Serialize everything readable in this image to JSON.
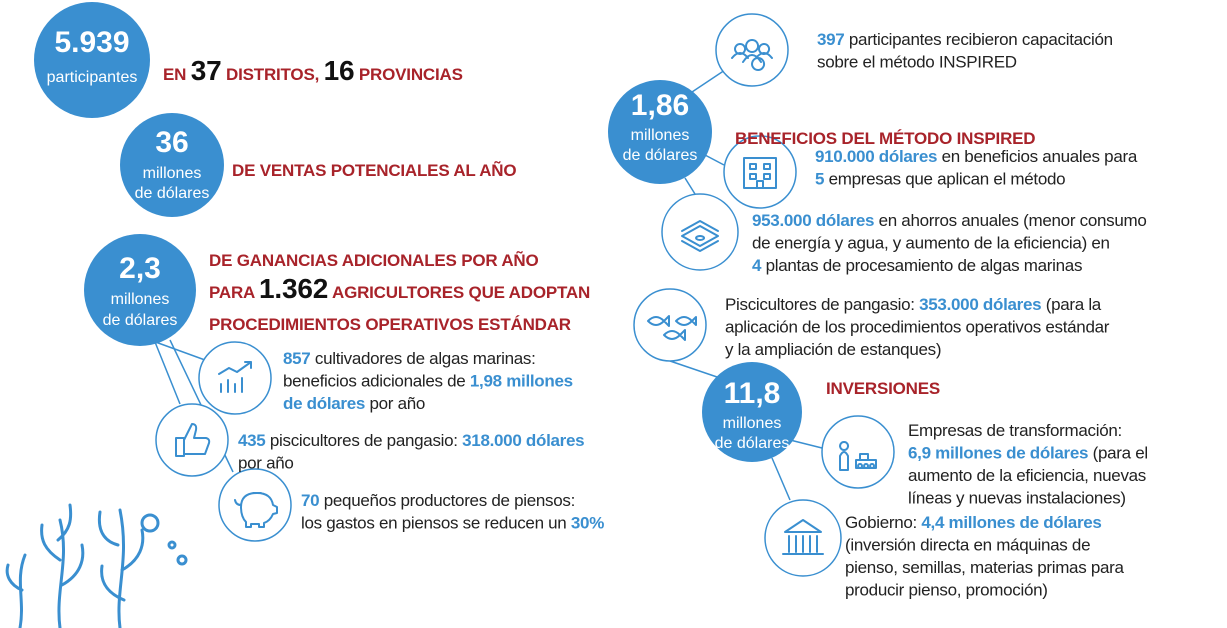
{
  "stats": [
    {
      "number": "5.939",
      "unit": [
        "participantes"
      ],
      "heading": [
        [
          {
            "text": "EN "
          },
          {
            "text": "37",
            "em": true
          },
          {
            "text": " DISTRITOS, "
          },
          {
            "text": "16",
            "em": true
          },
          {
            "text": " PROVINCIAS"
          }
        ]
      ]
    },
    {
      "number": "36",
      "unit": [
        "millones",
        "de dólares"
      ],
      "heading": [
        [
          {
            "text": "DE VENTAS POTENCIALES AL AÑO"
          }
        ]
      ]
    },
    {
      "number": "2,3",
      "unit": [
        "millones",
        "de dólares"
      ],
      "heading": [
        [
          {
            "text": "DE GANANCIAS ADICIONALES POR AÑO"
          }
        ],
        [
          {
            "text": "PARA "
          },
          {
            "text": "1.362",
            "em": true
          },
          {
            "text": " AGRICULTORES QUE ADOPTAN"
          }
        ],
        [
          {
            "text": "PROCEDIMIENTOS OPERATIVOS ESTÁNDAR"
          }
        ]
      ]
    },
    {
      "number": "1,86",
      "unit": [
        "millones",
        "de dólares"
      ],
      "heading": [
        [
          {
            "text": "BENEFICIOS DEL MÉTODO INSPIRED"
          }
        ]
      ]
    },
    {
      "number": "11,8",
      "unit": [
        "millones",
        "de dólares"
      ],
      "heading": [
        [
          {
            "text": "INVERSIONES"
          }
        ]
      ]
    }
  ],
  "items": [
    {
      "lines": [
        [
          {
            "text": "397",
            "em": true
          },
          {
            "text": " participantes recibieron capacitación"
          }
        ],
        [
          {
            "text": "sobre el método INSPIRED"
          }
        ]
      ]
    },
    {
      "lines": [
        [
          {
            "text": "910.000 dólares",
            "em": true
          },
          {
            "text": " en beneficios anuales para"
          }
        ],
        [
          {
            "text": "5",
            "em": true
          },
          {
            "text": " empresas que aplican el método"
          }
        ]
      ]
    },
    {
      "lines": [
        [
          {
            "text": "953.000 dólares",
            "em": true
          },
          {
            "text": " en ahorros anuales (menor consumo"
          }
        ],
        [
          {
            "text": "de energía y agua, y aumento de la eficiencia) en"
          }
        ],
        [
          {
            "text": "4",
            "em": true
          },
          {
            "text": " plantas de procesamiento de algas marinas"
          }
        ]
      ]
    },
    {
      "lines": [
        [
          {
            "text": "Piscicultores de pangasio: "
          },
          {
            "text": "353.000 dólares",
            "em": true
          },
          {
            "text": " (para la"
          }
        ],
        [
          {
            "text": "aplicación de los procedimientos operativos estándar"
          }
        ],
        [
          {
            "text": "y la ampliación de estanques)"
          }
        ]
      ]
    },
    {
      "lines": [
        [
          {
            "text": "Empresas de transformación:"
          }
        ],
        [
          {
            "text": "6,9 millones de dólares",
            "em": true
          },
          {
            "text": " (para el"
          }
        ],
        [
          {
            "text": "aumento de la eficiencia, nuevas"
          }
        ],
        [
          {
            "text": "líneas y nuevas instalaciones)"
          }
        ]
      ]
    },
    {
      "lines": [
        [
          {
            "text": "Gobierno: "
          },
          {
            "text": "4,4 millones de dólares",
            "em": true
          }
        ],
        [
          {
            "text": "(inversión directa en máquinas de"
          }
        ],
        [
          {
            "text": "pienso, semillas, materias primas para"
          }
        ],
        [
          {
            "text": "producir pienso, promoción)"
          }
        ]
      ]
    },
    {
      "lines": [
        [
          {
            "text": "857",
            "em": true
          },
          {
            "text": " cultivadores de algas marinas:"
          }
        ],
        [
          {
            "text": "beneficios adicionales de "
          },
          {
            "text": "1,98 millones",
            "em": true
          }
        ],
        [
          {
            "text": "de dólares",
            "em": true
          },
          {
            "text": " por año"
          }
        ]
      ]
    },
    {
      "lines": [
        [
          {
            "text": "435",
            "em": true
          },
          {
            "text": " piscicultores de pangasio: "
          },
          {
            "text": "318.000 dólares",
            "em": true
          }
        ],
        [
          {
            "text": "por año"
          }
        ]
      ]
    },
    {
      "lines": [
        [
          {
            "text": "70",
            "em": true
          },
          {
            "text": " pequeños productores de piensos:"
          }
        ],
        [
          {
            "text": "los gastos en piensos se reducen un "
          },
          {
            "text": "30%",
            "em": true
          }
        ]
      ]
    }
  ]
}
